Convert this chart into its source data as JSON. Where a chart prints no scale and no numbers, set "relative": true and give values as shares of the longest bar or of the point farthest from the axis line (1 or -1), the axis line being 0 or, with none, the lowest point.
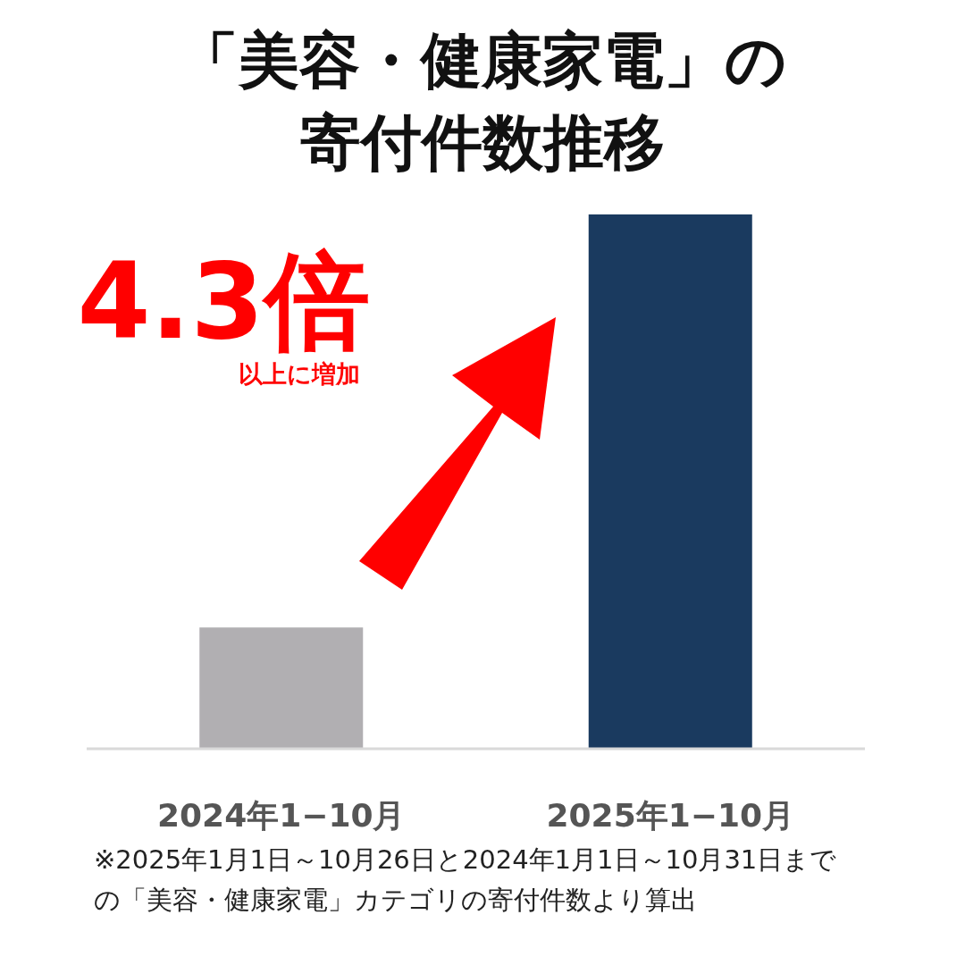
{
  "chart_data": {
    "type": "bar",
    "title": "「美容・健康家電」の寄付件数推移",
    "categories": [
      "2024年1−10月",
      "2025年1−10月"
    ],
    "values": [
      0.227,
      1
    ],
    "colors": [
      "#b1afb2",
      "#1a3a5f"
    ],
    "relative": true,
    "annotations": [
      "4.3倍",
      "以上に増加",
      "※2025年1月1日～10月26日と2024年1月1日～10月31日までの「美容・健康家電」カテゴリの寄付件数より算出"
    ]
  }
}
